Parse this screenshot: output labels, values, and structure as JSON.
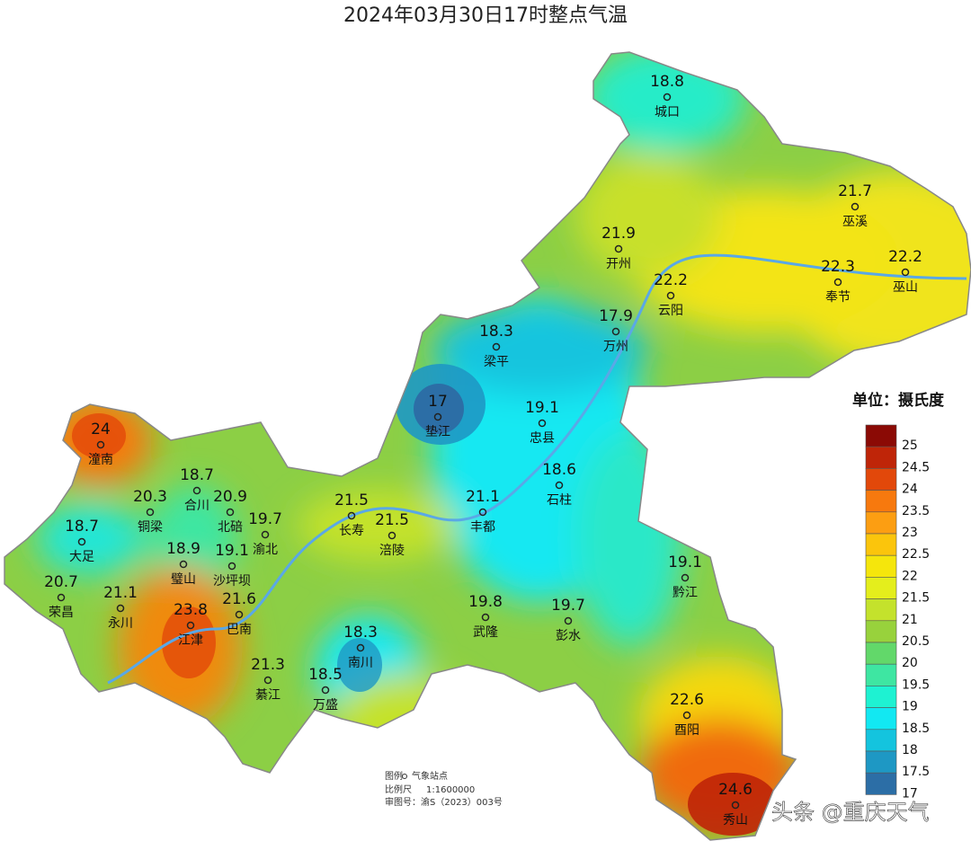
{
  "title": "2024年03月30日17时整点气温",
  "stations": [
    {
      "name": "城口",
      "value": 18.8
    },
    {
      "name": "巫溪",
      "value": 21.7
    },
    {
      "name": "开州",
      "value": 21.9
    },
    {
      "name": "云阳",
      "value": 22.2
    },
    {
      "name": "奉节",
      "value": 22.3
    },
    {
      "name": "巫山",
      "value": 22.2
    },
    {
      "name": "梁平",
      "value": 18.3
    },
    {
      "name": "万州",
      "value": 17.9
    },
    {
      "name": "垫江",
      "value": 17
    },
    {
      "name": "忠县",
      "value": 19.1
    },
    {
      "name": "潼南",
      "value": 24
    },
    {
      "name": "石柱",
      "value": 18.6
    },
    {
      "name": "合川",
      "value": 18.7
    },
    {
      "name": "铜梁",
      "value": 20.3
    },
    {
      "name": "北碚",
      "value": 20.9
    },
    {
      "name": "渝北",
      "value": 19.7
    },
    {
      "name": "长寿",
      "value": 21.5
    },
    {
      "name": "涪陵",
      "value": 21.5
    },
    {
      "name": "丰都",
      "value": 21.1
    },
    {
      "name": "大足",
      "value": 18.7
    },
    {
      "name": "璧山",
      "value": 18.9
    },
    {
      "name": "沙坪坝",
      "value": 19.1
    },
    {
      "name": "黔江",
      "value": 19.1
    },
    {
      "name": "荣昌",
      "value": 20.7
    },
    {
      "name": "永川",
      "value": 21.1
    },
    {
      "name": "巴南",
      "value": 21.6
    },
    {
      "name": "江津",
      "value": 23.8
    },
    {
      "name": "武隆",
      "value": 19.8
    },
    {
      "name": "彭水",
      "value": 19.7
    },
    {
      "name": "南川",
      "value": 18.3
    },
    {
      "name": "綦江",
      "value": 21.3
    },
    {
      "name": "万盛",
      "value": 18.5
    },
    {
      "name": "酉阳",
      "value": 22.6
    },
    {
      "name": "秀山",
      "value": 24.6
    }
  ],
  "legend": {
    "title": "单位：摄氏度",
    "items": [
      {
        "value": 25,
        "color": "#8b0a05"
      },
      {
        "value": 24.5,
        "color": "#bf2508"
      },
      {
        "value": 24,
        "color": "#e2480a"
      },
      {
        "value": 23.5,
        "color": "#f7790e"
      },
      {
        "value": 23,
        "color": "#fc9e12"
      },
      {
        "value": 22.5,
        "color": "#fbc50c"
      },
      {
        "value": 22,
        "color": "#f5e60c"
      },
      {
        "value": 21.5,
        "color": "#e4ee1c"
      },
      {
        "value": 21,
        "color": "#c4e22c"
      },
      {
        "value": 20.5,
        "color": "#98d23c"
      },
      {
        "value": 20,
        "color": "#62d86a"
      },
      {
        "value": 19.5,
        "color": "#3ee6a2"
      },
      {
        "value": 19,
        "color": "#1ef2d2"
      },
      {
        "value": 18.5,
        "color": "#12e8f2"
      },
      {
        "value": 18,
        "color": "#14c4de"
      },
      {
        "value": 17.5,
        "color": "#1e98c4"
      },
      {
        "value": 17,
        "color": "#2c6ea6"
      }
    ]
  },
  "footnote": {
    "legend_label": "图例",
    "legend_item": "气象站点",
    "scale_label": "比例尺",
    "scale": "1:1600000",
    "approval": "审图号：渝S（2023）003号"
  },
  "watermark": "头条 @重庆天气"
}
